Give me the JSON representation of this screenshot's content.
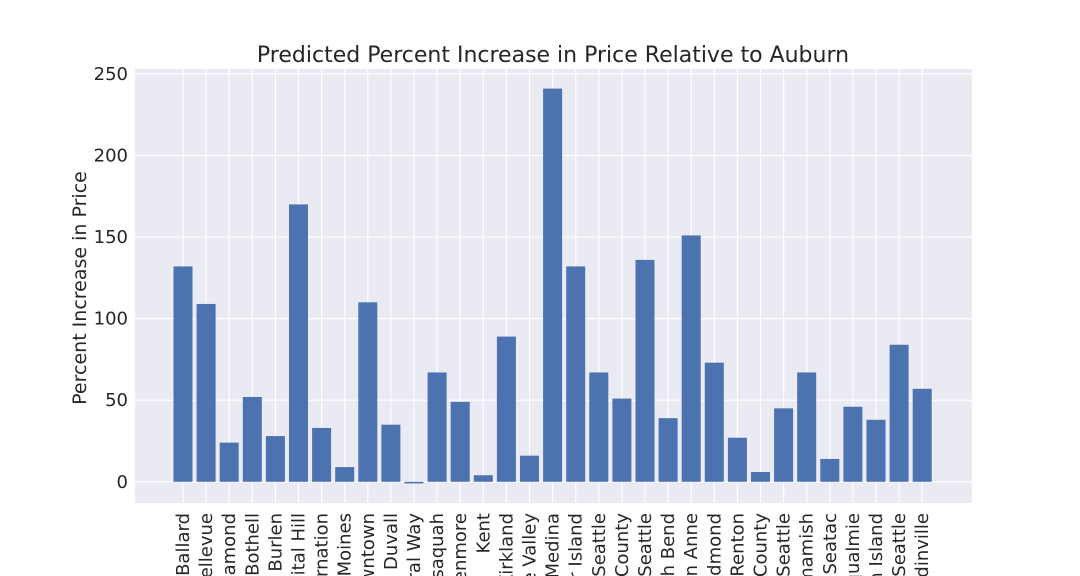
{
  "chart_data": {
    "type": "bar",
    "title": "Predicted Percent Increase in Price Relative to Auburn",
    "xlabel": "",
    "ylabel": "Percent Increase in Price",
    "ylim": [
      -13,
      253
    ],
    "yticks": [
      0,
      50,
      100,
      150,
      200,
      250
    ],
    "grid": true,
    "categories_displayed": [
      "Ballard",
      "ellevue",
      "iamond",
      "Bothell",
      "Burlen",
      "pital Hill",
      "rnation",
      "Moines",
      "wntown",
      "Duvall",
      "ral Way",
      "ssaquah",
      "enmore",
      "Kent",
      "Kirkland",
      "e Valley",
      "Medina",
      "r Island",
      "Seattle",
      "County",
      "Seattle",
      "h Bend",
      "en Anne",
      "dmond",
      "Renton",
      "County",
      "Seattle",
      "mamish",
      "Seatac",
      "qualmie",
      "n Island",
      "Seattle",
      "dinville"
    ],
    "values": [
      132,
      109,
      24,
      52,
      28,
      170,
      33,
      9,
      110,
      35,
      -1,
      67,
      49,
      4,
      89,
      16,
      241,
      132,
      67,
      51,
      136,
      39,
      151,
      73,
      27,
      6,
      45,
      67,
      14,
      46,
      38,
      84,
      57
    ],
    "bar_color": "#4c72b0",
    "background_color": "#eaeaf2",
    "grid_color": "#ffffff"
  }
}
